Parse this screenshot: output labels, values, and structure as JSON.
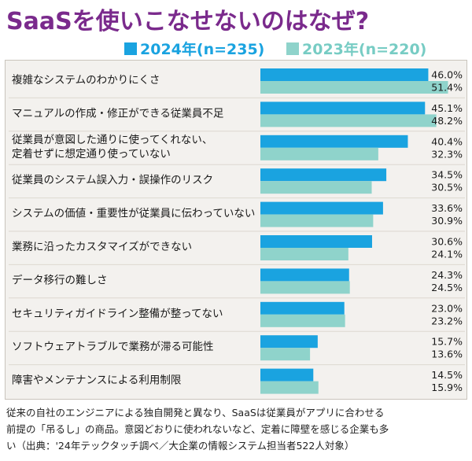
{
  "title": "SaaSを使いこなせないのはなぜ?",
  "colors": {
    "y2024": "#1aa3e0",
    "y2023": "#8fd3cb",
    "title": "#7a2a8c"
  },
  "chart_data": {
    "type": "bar",
    "orientation": "horizontal",
    "title": "SaaSを使いこなせないのはなぜ?",
    "categories": [
      [
        "複雑なシステムのわかりにくさ"
      ],
      [
        "マニュアルの作成・修正ができる従業員不足"
      ],
      [
        "従業員が意図した通りに使ってくれない、",
        "定着せずに想定通り使っていない"
      ],
      [
        "従業員のシステム誤入力・誤操作のリスク"
      ],
      [
        "システムの価値・重要性が従業員に伝わっていない"
      ],
      [
        "業務に沿ったカスタマイズができない"
      ],
      [
        "データ移行の難しさ"
      ],
      [
        "セキュリティガイドライン整備が整ってない"
      ],
      [
        "ソフトウェアトラブルで業務が滞る可能性"
      ],
      [
        "障害やメンテナンスによる利用制限"
      ]
    ],
    "series": [
      {
        "name": "2024年(n=235)",
        "values": [
          46.0,
          45.1,
          40.4,
          34.5,
          33.6,
          30.6,
          24.3,
          23.0,
          15.7,
          14.5
        ]
      },
      {
        "name": "2023年(n=220)",
        "values": [
          51.4,
          48.2,
          32.3,
          30.5,
          30.9,
          24.1,
          24.5,
          23.2,
          13.6,
          15.9
        ]
      }
    ],
    "value_suffix": "%",
    "xlim": [
      0,
      60
    ],
    "legend_position": "top"
  },
  "caption": [
    "従来の自社のエンジニアによる独自開発と異なり、SaaSは従業員がアプリに合わせる",
    "前提の「吊るし」の商品。意図どおりに使われないなど、定着に障壁を感じる企業も多",
    "い（出典：'24年テックタッチ調べ／大企業の情報システム担当者522人対象）"
  ]
}
